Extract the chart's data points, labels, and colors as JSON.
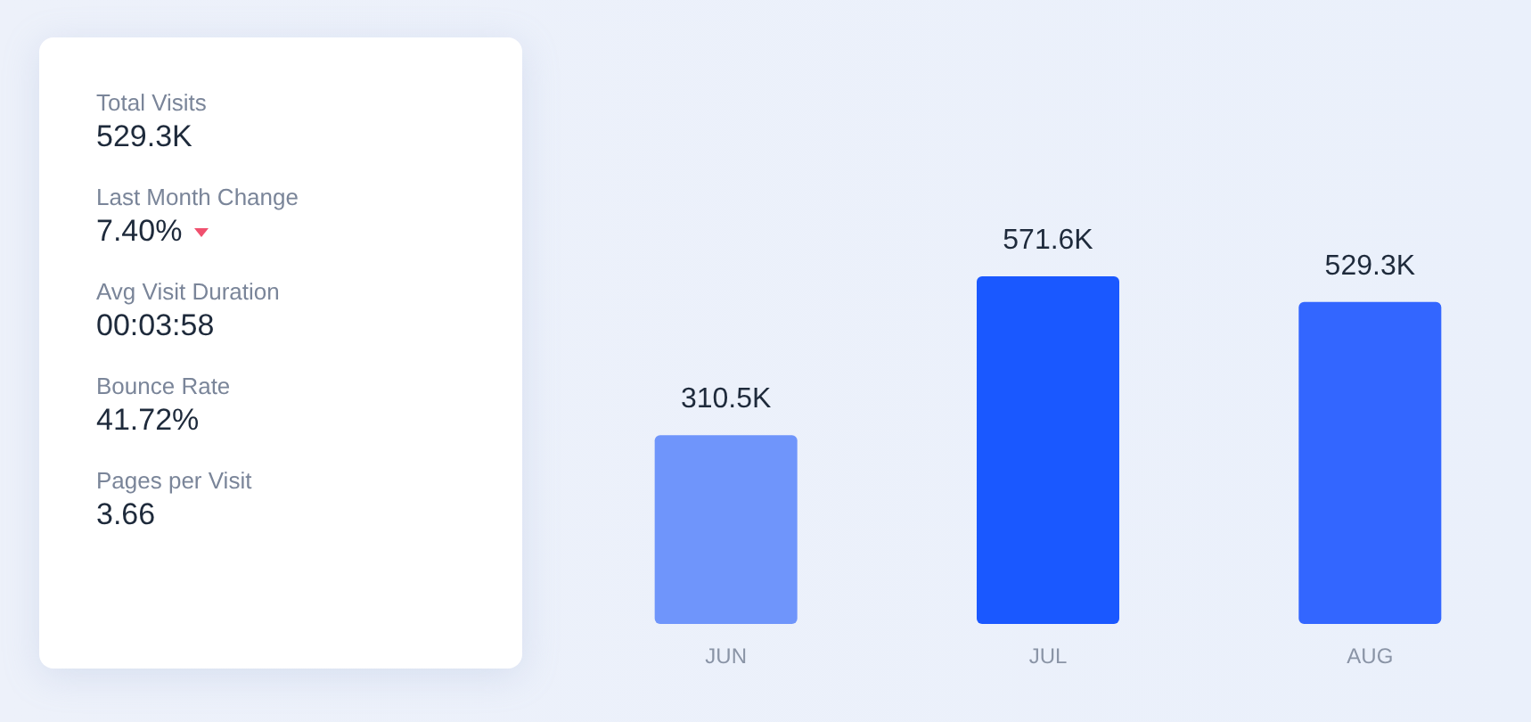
{
  "chart_data": [
    {
      "type": "other",
      "annotations": [
        "Total Visits",
        "529.3K",
        "Last Month Change",
        "7.40%",
        "Avg Visit Duration",
        "00:03:58",
        "Bounce Rate",
        "41.72%",
        "Pages per Visit",
        "3.66"
      ]
    },
    {
      "type": "bar",
      "categories": [
        "JUN",
        "JUL",
        "AUG"
      ],
      "values": [
        310.5,
        571.6,
        529.3
      ],
      "colors": [
        "#6f95fb",
        "#1a58ff",
        "#3366ff"
      ],
      "value_labels": [
        "310.5K",
        "571.6K",
        "529.3K"
      ]
    }
  ]
}
